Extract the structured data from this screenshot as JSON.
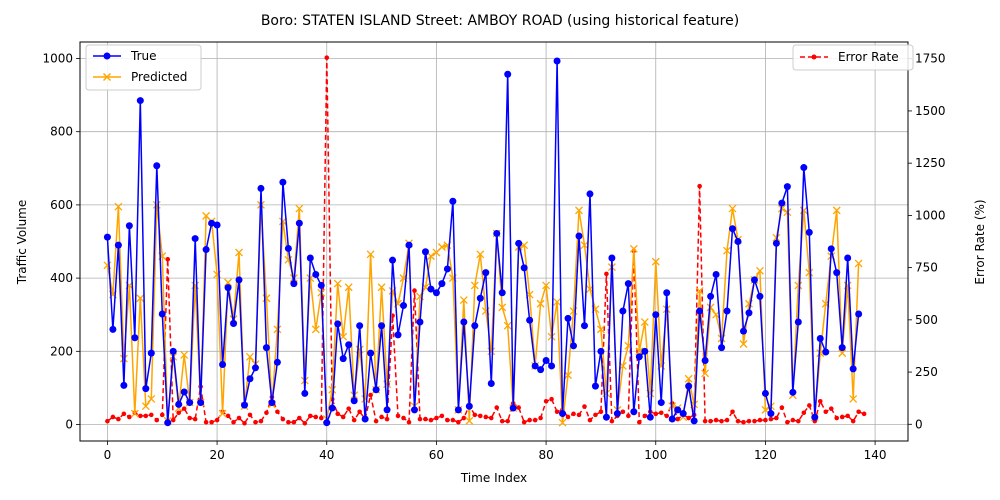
{
  "chart_data": {
    "type": "line",
    "title": "Boro: STATEN ISLAND Street: AMBOY ROAD (using historical feature)",
    "xlabel": "Time Index",
    "ylabel": "Traffic Volume",
    "ylabel_right": "Error Rate (%)",
    "xlim": [
      -5,
      146
    ],
    "ylim": [
      -45,
      1045
    ],
    "ylim_right": [
      -80,
      1830
    ],
    "x_ticks": [
      0,
      20,
      40,
      60,
      80,
      100,
      120,
      140
    ],
    "y_ticks": [
      0,
      200,
      400,
      600,
      800,
      1000
    ],
    "y_ticks_right": [
      0,
      250,
      500,
      750,
      1000,
      1250,
      1500,
      1750
    ],
    "grid": true,
    "legend_left": "upper-left",
    "legend_right": "upper-right",
    "colors": {
      "true": "#0000ff",
      "predicted": "#ffa500",
      "error": "#ff0000",
      "grid": "#b0b0b0"
    },
    "series": [
      {
        "name": "True",
        "axis": "left",
        "marker": "circle",
        "values": [
          512,
          260,
          490,
          107,
          543,
          237,
          885,
          98,
          195,
          707,
          302,
          5,
          200,
          55,
          89,
          60,
          508,
          60,
          478,
          550,
          545,
          164,
          374,
          276,
          395,
          53,
          125,
          155,
          645,
          210,
          60,
          170,
          662,
          481,
          385,
          550,
          85,
          455,
          410,
          380,
          5,
          45,
          275,
          180,
          218,
          65,
          270,
          15,
          195,
          95,
          270,
          40,
          449,
          245,
          325,
          490,
          40,
          280,
          472,
          370,
          360,
          385,
          425,
          610,
          40,
          280,
          50,
          270,
          345,
          415,
          112,
          522,
          360,
          957,
          45,
          495,
          428,
          285,
          160,
          150,
          175,
          160,
          993,
          30,
          290,
          215,
          515,
          270,
          630,
          105,
          200,
          20,
          455,
          30,
          310,
          385,
          35,
          185,
          200,
          20,
          300,
          60,
          360,
          15,
          40,
          30,
          105,
          10,
          310,
          175,
          350,
          410,
          210,
          310,
          535,
          500,
          255,
          305,
          395,
          350,
          85,
          30,
          495,
          605,
          650,
          88,
          280,
          702,
          525,
          20,
          235,
          198,
          480,
          415,
          210,
          455,
          152,
          302
        ]
      },
      {
        "name": "Predicted",
        "axis": "left",
        "marker": "x",
        "values": [
          435,
          355,
          595,
          180,
          380,
          30,
          345,
          50,
          70,
          600,
          460,
          10,
          185,
          45,
          190,
          60,
          380,
          60,
          570,
          555,
          410,
          30,
          388,
          288,
          470,
          50,
          185,
          165,
          600,
          345,
          55,
          260,
          555,
          450,
          400,
          590,
          120,
          400,
          260,
          360,
          15,
          95,
          385,
          240,
          375,
          80,
          205,
          70,
          465,
          95,
          375,
          110,
          365,
          330,
          400,
          495,
          50,
          350,
          375,
          460,
          470,
          485,
          490,
          400,
          40,
          340,
          10,
          380,
          465,
          310,
          200,
          522,
          320,
          270,
          45,
          485,
          490,
          355,
          160,
          330,
          380,
          240,
          335,
          5,
          135,
          310,
          585,
          490,
          370,
          315,
          260,
          85,
          430,
          40,
          160,
          215,
          480,
          200,
          280,
          85,
          445,
          160,
          315,
          50,
          45,
          20,
          125,
          55,
          365,
          140,
          320,
          300,
          235,
          475,
          590,
          505,
          220,
          330,
          395,
          420,
          40,
          50,
          510,
          590,
          580,
          80,
          380,
          585,
          415,
          20,
          195,
          330,
          460,
          585,
          195,
          380,
          70,
          440
        ]
      },
      {
        "name": "Error Rate",
        "axis": "right",
        "marker": "dot",
        "dashed": true,
        "values": [
          15,
          35,
          25,
          50,
          35,
          55,
          40,
          40,
          45,
          20,
          45,
          790,
          20,
          55,
          75,
          30,
          25,
          180,
          10,
          10,
          20,
          60,
          40,
          10,
          30,
          5,
          45,
          10,
          15,
          55,
          130,
          60,
          25,
          10,
          10,
          30,
          5,
          40,
          35,
          30,
          1755,
          120,
          50,
          35,
          75,
          20,
          60,
          25,
          140,
          15,
          35,
          25,
          520,
          40,
          30,
          10,
          640,
          25,
          25,
          20,
          30,
          40,
          20,
          20,
          10,
          30,
          90,
          45,
          40,
          35,
          30,
          80,
          15,
          15,
          100,
          80,
          10,
          20,
          20,
          30,
          110,
          120,
          60,
          70,
          35,
          50,
          45,
          85,
          20,
          45,
          60,
          720,
          15,
          40,
          60,
          40,
          830,
          10,
          40,
          60,
          50,
          55,
          40,
          100,
          25,
          45,
          30,
          45,
          1140,
          15,
          15,
          20,
          15,
          20,
          60,
          15,
          10,
          15,
          15,
          20,
          20,
          25,
          30,
          80,
          10,
          20,
          15,
          55,
          90,
          15,
          110,
          60,
          75,
          30,
          35,
          40,
          15,
          60,
          50
        ]
      }
    ]
  },
  "legend": {
    "left": [
      {
        "label": "True"
      },
      {
        "label": "Predicted"
      }
    ],
    "right": [
      {
        "label": "Error Rate"
      }
    ]
  }
}
